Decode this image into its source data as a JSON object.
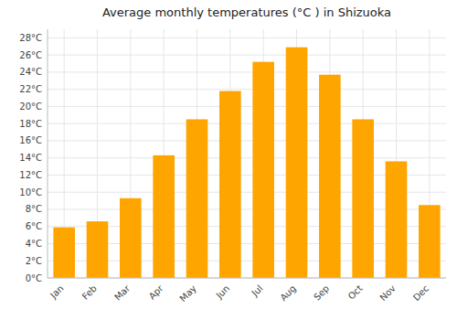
{
  "chart_data": {
    "type": "bar",
    "title": "Average monthly temperatures (°C ) in Shizuoka",
    "categories": [
      "Jan",
      "Feb",
      "Mar",
      "Apr",
      "May",
      "Jun",
      "Jul",
      "Aug",
      "Sep",
      "Oct",
      "Nov",
      "Dec"
    ],
    "values": [
      5.9,
      6.6,
      9.3,
      14.3,
      18.5,
      21.8,
      25.2,
      26.9,
      23.7,
      18.5,
      13.6,
      8.5
    ],
    "color": "#FFA500",
    "ylim": [
      0,
      29
    ],
    "yticks": [
      {
        "value": 0,
        "label": "0°C"
      },
      {
        "value": 2,
        "label": "2°C"
      },
      {
        "value": 4,
        "label": "4°C"
      },
      {
        "value": 6,
        "label": "6°C"
      },
      {
        "value": 8,
        "label": "8°C"
      },
      {
        "value": 10,
        "label": "10°C"
      },
      {
        "value": 12,
        "label": "12°C"
      },
      {
        "value": 14,
        "label": "14°C"
      },
      {
        "value": 16,
        "label": "16°C"
      },
      {
        "value": 18,
        "label": "18°C"
      },
      {
        "value": 20,
        "label": "20°C"
      },
      {
        "value": 22,
        "label": "22°C"
      },
      {
        "value": 24,
        "label": "24°C"
      },
      {
        "value": 26,
        "label": "26°C"
      },
      {
        "value": 28,
        "label": "28°C"
      }
    ],
    "grid": true
  }
}
